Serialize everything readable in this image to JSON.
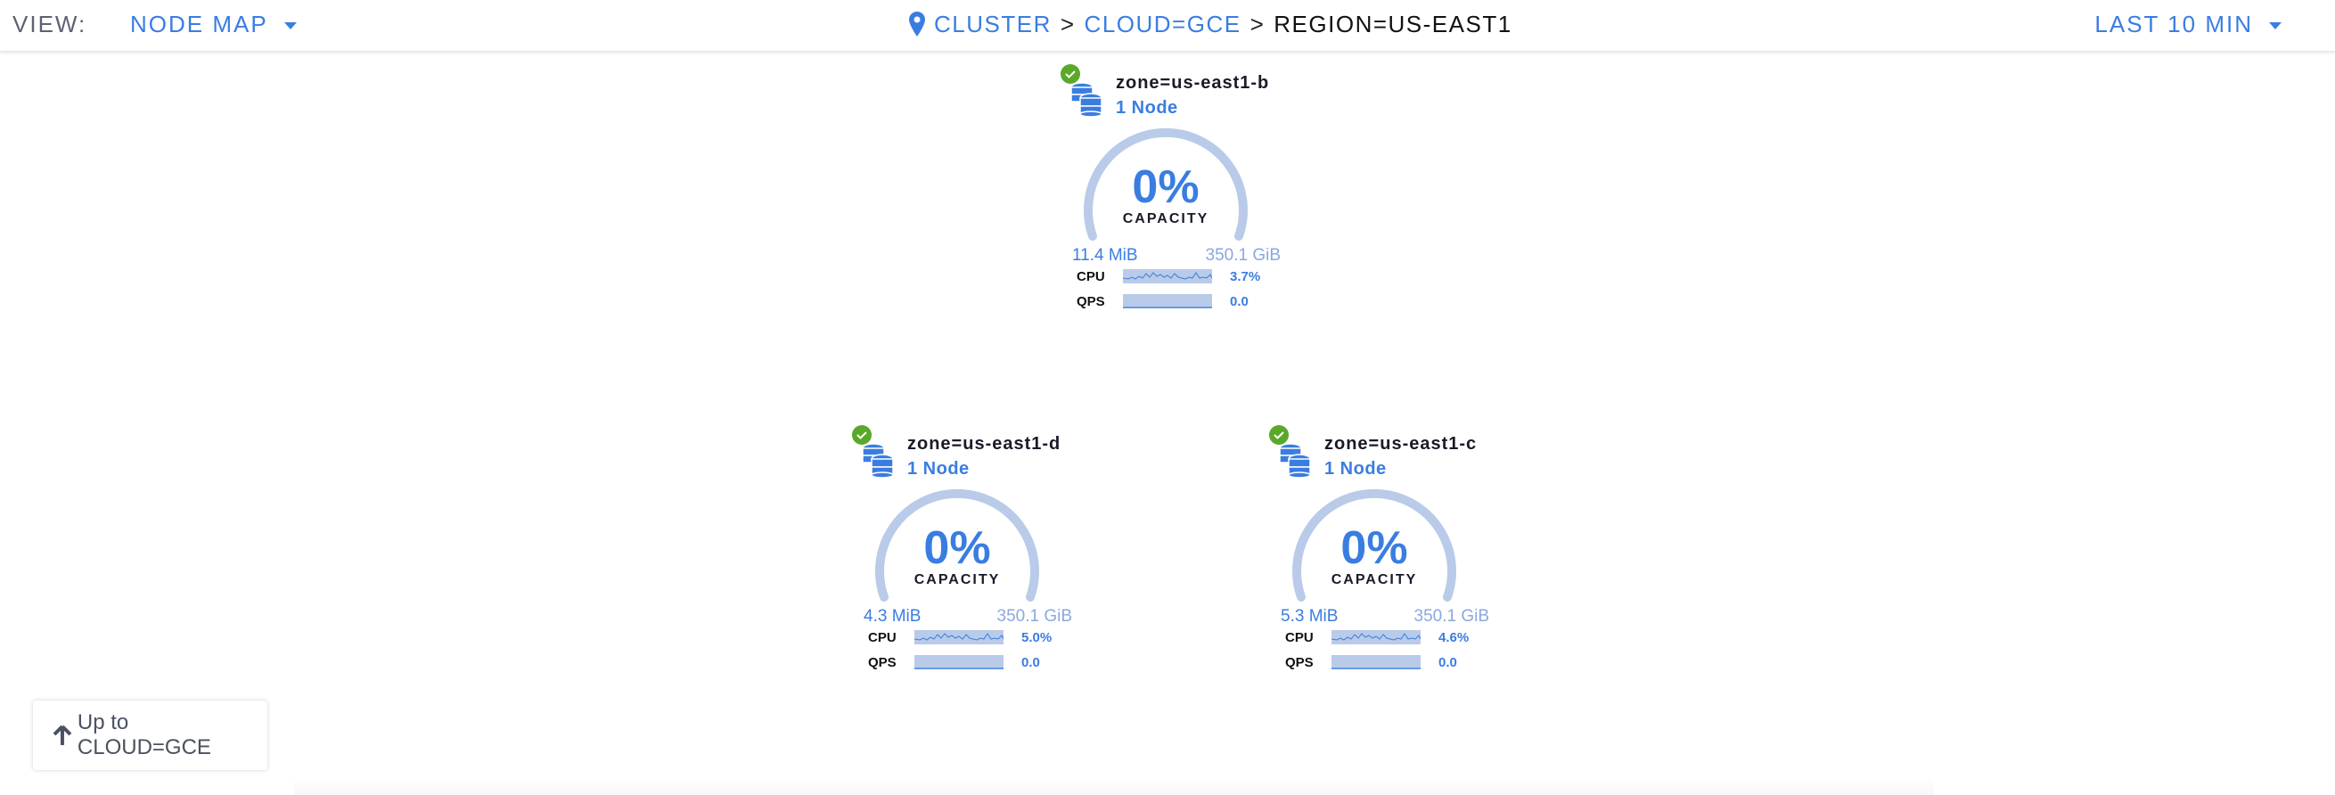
{
  "header": {
    "view_label": "VIEW:",
    "view_value": "NODE MAP",
    "breadcrumb": [
      "CLUSTER",
      "CLOUD=GCE",
      "REGION=US-EAST1"
    ],
    "separator": ">",
    "time_range": "LAST 10 MIN"
  },
  "colors": {
    "accent": "#3a7de1",
    "healthy": "#5aa829",
    "arc": "#b9cbe8"
  },
  "zones": [
    {
      "name": "zone=us-east1-b",
      "nodes": "1 Node",
      "capacity_pct": "0%",
      "capacity_label": "CAPACITY",
      "used": "11.4 MiB",
      "total": "350.1 GiB",
      "cpu_label": "CPU",
      "cpu": "3.7%",
      "qps_label": "QPS",
      "qps": "0.0",
      "status": "healthy"
    },
    {
      "name": "zone=us-east1-d",
      "nodes": "1 Node",
      "capacity_pct": "0%",
      "capacity_label": "CAPACITY",
      "used": "4.3 MiB",
      "total": "350.1 GiB",
      "cpu_label": "CPU",
      "cpu": "5.0%",
      "qps_label": "QPS",
      "qps": "0.0",
      "status": "healthy"
    },
    {
      "name": "zone=us-east1-c",
      "nodes": "1 Node",
      "capacity_pct": "0%",
      "capacity_label": "CAPACITY",
      "used": "5.3 MiB",
      "total": "350.1 GiB",
      "cpu_label": "CPU",
      "cpu": "4.6%",
      "qps_label": "QPS",
      "qps": "0.0",
      "status": "healthy"
    }
  ],
  "up_button": {
    "label": "Up to CLOUD=GCE",
    "icon": "arrow-up-icon"
  }
}
